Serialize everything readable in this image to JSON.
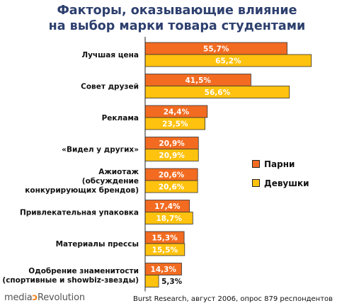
{
  "title_line1": "Факторы, оказывающие влияние",
  "title_line2": "на выбор марки товара студентами",
  "colors": {
    "boys": "#f26b21",
    "girls": "#ffc20e",
    "title": "#2d3f6e"
  },
  "legend": {
    "boys": "Парни",
    "girls": "Девушки"
  },
  "footer": {
    "source": "Burst Research, август 2006, опрос 879 респондентов"
  },
  "brand": {
    "media": "media",
    "revolution": "Revolution"
  },
  "chart_data": {
    "type": "bar",
    "orientation": "horizontal",
    "categories": [
      [
        "Лучшая цена"
      ],
      [
        "Совет друзей"
      ],
      [
        "Реклама"
      ],
      [
        "«Видел у других»"
      ],
      [
        "Ажиотаж",
        "(обсуждение",
        "конкурирующих брендов)"
      ],
      [
        "Привлекательная упаковка"
      ],
      [
        "Материалы прессы"
      ],
      [
        "Одобрение знаменитости",
        "(спортивные и showbiz-звезды)"
      ]
    ],
    "series": [
      {
        "name": "Парни",
        "values": [
          55.7,
          41.5,
          24.4,
          20.9,
          20.6,
          17.4,
          15.3,
          14.3
        ],
        "labels": [
          "55,7%",
          "41,5%",
          "24,4%",
          "20,9%",
          "20,6%",
          "17,4%",
          "15,3%",
          "14,3%"
        ]
      },
      {
        "name": "Девушки",
        "values": [
          65.2,
          56.6,
          23.5,
          20.9,
          20.6,
          18.7,
          15.5,
          5.3
        ],
        "labels": [
          "65,2%",
          "56,6%",
          "23,5%",
          "20,9%",
          "20,6%",
          "18,7%",
          "15,5%",
          "5,3%"
        ]
      }
    ],
    "legend_position": "right"
  }
}
